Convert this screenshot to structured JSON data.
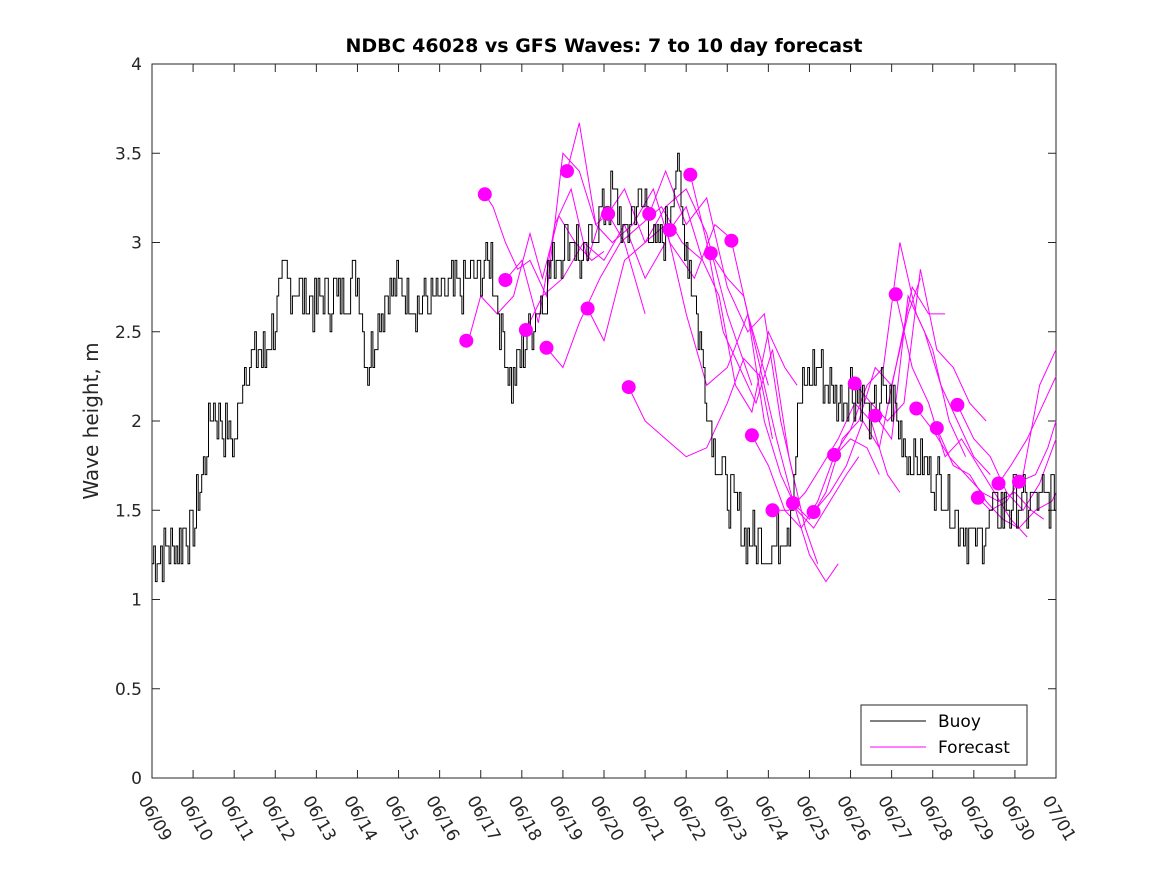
{
  "chart_data": {
    "type": "line",
    "title": "NDBC 46028 vs GFS Waves: 7 to 10 day forecast",
    "xlabel": "",
    "ylabel": "Wave height, m",
    "ylim": [
      0,
      4
    ],
    "yticks": [
      0,
      0.5,
      1,
      1.5,
      2,
      2.5,
      3,
      3.5,
      4
    ],
    "xlim": [
      "06/09",
      "07/01"
    ],
    "xtick_labels": [
      "06/09",
      "06/10",
      "06/11",
      "06/12",
      "06/13",
      "06/14",
      "06/15",
      "06/16",
      "06/17",
      "06/18",
      "06/19",
      "06/20",
      "06/21",
      "06/22",
      "06/23",
      "06/24",
      "06/25",
      "06/26",
      "06/27",
      "06/28",
      "06/29",
      "06/30",
      "07/01"
    ],
    "grid": false,
    "legend": {
      "position": "bottom-right",
      "entries": [
        "Buoy",
        "Forecast"
      ]
    },
    "colors": {
      "buoy": "#000000",
      "forecast": "#ff00ff"
    },
    "buoy": {
      "name": "Buoy",
      "x_day": [
        0,
        0.5,
        1,
        1.25,
        1.5,
        1.75,
        2,
        2.25,
        2.5,
        2.75,
        3,
        3.25,
        3.5,
        4,
        4.5,
        5,
        5.25,
        5.5,
        5.75,
        6,
        6.5,
        7,
        7.5,
        8,
        8.25,
        8.5,
        8.75,
        9,
        9.25,
        9.5,
        9.75,
        10,
        10.25,
        10.5,
        10.75,
        11,
        11.25,
        11.5,
        11.75,
        12,
        12.25,
        12.5,
        12.75,
        13,
        13.25,
        13.5,
        13.75,
        14,
        14.25,
        14.5,
        14.75,
        15,
        15.25,
        15.5,
        15.75,
        16,
        16.25,
        16.5,
        16.75,
        17,
        17.25,
        17.5,
        17.75,
        18,
        18.25,
        18.5,
        18.75,
        19,
        19.25,
        19.5,
        19.75,
        20,
        20.25,
        20.5,
        20.75,
        21,
        21.25,
        21.5,
        21.75,
        22
      ],
      "y": [
        1.25,
        1.3,
        1.4,
        1.75,
        2.1,
        1.95,
        1.9,
        2.3,
        2.4,
        2.35,
        2.6,
        2.8,
        2.75,
        2.65,
        2.7,
        2.8,
        2.3,
        2.55,
        2.75,
        2.75,
        2.65,
        2.7,
        2.75,
        2.85,
        2.9,
        2.5,
        2.2,
        2.4,
        2.55,
        2.7,
        2.9,
        3.0,
        3.05,
        2.85,
        3.1,
        3.2,
        3.25,
        3.0,
        3.2,
        3.25,
        2.9,
        3.1,
        3.4,
        3.0,
        2.6,
        2.1,
        1.8,
        1.6,
        1.45,
        1.35,
        1.3,
        1.3,
        1.35,
        1.45,
        2.1,
        2.25,
        2.3,
        2.2,
        2.1,
        2.2,
        2.15,
        2.0,
        2.15,
        2.1,
        1.9,
        1.8,
        1.75,
        1.7,
        1.6,
        1.5,
        1.4,
        1.3,
        1.4,
        1.5,
        1.5,
        1.55,
        1.5,
        1.55,
        1.55,
        1.6
      ]
    },
    "forecast": {
      "name": "Forecast",
      "points": [
        {
          "x_day": 7.65,
          "y": 2.45
        },
        {
          "x_day": 8.1,
          "y": 3.27
        },
        {
          "x_day": 8.6,
          "y": 2.79
        },
        {
          "x_day": 9.1,
          "y": 2.51
        },
        {
          "x_day": 9.6,
          "y": 2.41
        },
        {
          "x_day": 10.1,
          "y": 3.4
        },
        {
          "x_day": 10.6,
          "y": 2.63
        },
        {
          "x_day": 11.1,
          "y": 3.16
        },
        {
          "x_day": 11.6,
          "y": 2.19
        },
        {
          "x_day": 12.1,
          "y": 3.16
        },
        {
          "x_day": 12.6,
          "y": 3.07
        },
        {
          "x_day": 13.1,
          "y": 3.38
        },
        {
          "x_day": 13.6,
          "y": 2.94
        },
        {
          "x_day": 14.1,
          "y": 3.01
        },
        {
          "x_day": 14.6,
          "y": 1.92
        },
        {
          "x_day": 15.1,
          "y": 1.5
        },
        {
          "x_day": 15.6,
          "y": 1.54
        },
        {
          "x_day": 16.1,
          "y": 1.49
        },
        {
          "x_day": 16.6,
          "y": 1.81
        },
        {
          "x_day": 17.1,
          "y": 2.21
        },
        {
          "x_day": 17.6,
          "y": 2.03
        },
        {
          "x_day": 18.1,
          "y": 2.71
        },
        {
          "x_day": 18.6,
          "y": 2.07
        },
        {
          "x_day": 19.1,
          "y": 1.96
        },
        {
          "x_day": 19.6,
          "y": 2.09
        },
        {
          "x_day": 20.1,
          "y": 1.57
        },
        {
          "x_day": 20.6,
          "y": 1.65
        },
        {
          "x_day": 21.1,
          "y": 1.66
        }
      ],
      "lines": [
        {
          "x_day": [
            8.1,
            8.3,
            8.6,
            8.9,
            9.2,
            9.6,
            10.0,
            10.4,
            10.8,
            11.1
          ],
          "y": [
            3.27,
            3.2,
            3.0,
            2.85,
            2.9,
            2.7,
            3.5,
            3.4,
            3.1,
            3.16
          ]
        },
        {
          "x_day": [
            7.7,
            8.0,
            8.4,
            8.8,
            9.2,
            9.5,
            9.9,
            10.3,
            10.7,
            11.0
          ],
          "y": [
            2.45,
            2.7,
            2.6,
            2.7,
            3.05,
            2.8,
            3.15,
            3.0,
            2.9,
            2.95
          ]
        },
        {
          "x_day": [
            8.6,
            9.0,
            9.4,
            9.8,
            10.2,
            10.6,
            11.0,
            11.5,
            12.0
          ],
          "y": [
            2.79,
            2.9,
            2.55,
            3.1,
            3.3,
            2.9,
            3.2,
            3.0,
            2.6
          ]
        },
        {
          "x_day": [
            9.1,
            9.5,
            10.0,
            10.5,
            11.0,
            11.5,
            12.0,
            12.5
          ],
          "y": [
            2.51,
            2.7,
            2.8,
            3.0,
            2.9,
            3.1,
            2.8,
            3.0
          ]
        },
        {
          "x_day": [
            9.6,
            10.0,
            10.4,
            10.9,
            11.4,
            11.9,
            12.4,
            12.9,
            13.4
          ],
          "y": [
            2.41,
            2.3,
            2.55,
            2.8,
            3.0,
            3.1,
            3.2,
            3.0,
            2.9
          ]
        },
        {
          "x_day": [
            10.1,
            10.4,
            10.8,
            11.2,
            11.7,
            12.2,
            12.6,
            13.2,
            13.7,
            14.2
          ],
          "y": [
            3.4,
            3.67,
            3.1,
            3.0,
            3.1,
            3.3,
            3.0,
            2.8,
            3.1,
            3.0
          ]
        },
        {
          "x_day": [
            10.6,
            11.0,
            11.5,
            12.0,
            12.5,
            13.0,
            13.5,
            14.0,
            14.6
          ],
          "y": [
            2.63,
            2.45,
            2.9,
            3.0,
            3.2,
            3.3,
            3.05,
            2.6,
            2.2
          ]
        },
        {
          "x_day": [
            11.1,
            11.5,
            12.0,
            12.5,
            13.0,
            13.5,
            14.0,
            14.5,
            15.0
          ],
          "y": [
            3.16,
            3.3,
            3.0,
            3.1,
            2.6,
            2.2,
            2.3,
            2.6,
            2.2
          ]
        },
        {
          "x_day": [
            11.6,
            12.0,
            12.5,
            13.0,
            13.5,
            14.0,
            14.4,
            14.8,
            15.1
          ],
          "y": [
            2.19,
            2.0,
            1.9,
            1.8,
            1.85,
            2.1,
            2.35,
            2.25,
            1.9
          ]
        },
        {
          "x_day": [
            12.1,
            12.5,
            13.0,
            13.5,
            14.0,
            14.5,
            14.9,
            15.3,
            15.6
          ],
          "y": [
            3.16,
            3.4,
            3.1,
            3.25,
            2.75,
            2.5,
            2.6,
            2.0,
            1.7
          ]
        },
        {
          "x_day": [
            12.6,
            13.0,
            13.4,
            13.8,
            14.2,
            14.6,
            15.0,
            15.4,
            15.7
          ],
          "y": [
            3.07,
            3.2,
            2.9,
            2.7,
            2.2,
            2.05,
            2.5,
            2.3,
            2.2
          ]
        },
        {
          "x_day": [
            13.1,
            13.5,
            13.9,
            14.3,
            14.7,
            15.1,
            15.5,
            15.9,
            16.2
          ],
          "y": [
            3.38,
            3.0,
            2.5,
            2.3,
            2.1,
            2.4,
            1.8,
            1.4,
            1.2
          ]
        },
        {
          "x_day": [
            13.6,
            14.0,
            14.4,
            14.8,
            15.2,
            15.6,
            16.0,
            16.4,
            16.7
          ],
          "y": [
            2.94,
            2.8,
            2.7,
            2.3,
            1.9,
            1.55,
            1.25,
            1.1,
            1.2
          ]
        },
        {
          "x_day": [
            14.1,
            14.5,
            14.9,
            15.3,
            15.7,
            16.1,
            16.5,
            16.9,
            17.2
          ],
          "y": [
            3.01,
            2.6,
            2.0,
            1.7,
            1.5,
            1.4,
            1.55,
            1.7,
            1.8
          ]
        },
        {
          "x_day": [
            14.6,
            15.0,
            15.4,
            15.8,
            16.2,
            16.6,
            17.0,
            17.4,
            17.7
          ],
          "y": [
            1.92,
            1.75,
            1.5,
            1.4,
            1.55,
            1.8,
            1.9,
            1.85,
            1.7
          ]
        },
        {
          "x_day": [
            15.1,
            15.5,
            15.9,
            16.3,
            16.7,
            17.1,
            17.5,
            17.9,
            18.2
          ],
          "y": [
            1.5,
            1.5,
            1.6,
            1.75,
            1.9,
            2.1,
            2.0,
            1.7,
            1.6
          ]
        },
        {
          "x_day": [
            15.6,
            16.0,
            16.4,
            16.8,
            17.2,
            17.6,
            18.0,
            18.4,
            18.7
          ],
          "y": [
            1.54,
            1.45,
            1.6,
            1.9,
            2.0,
            2.3,
            2.2,
            2.6,
            2.8
          ]
        },
        {
          "x_day": [
            16.1,
            16.5,
            16.9,
            17.3,
            17.7,
            18.1,
            18.5,
            18.9,
            19.3
          ],
          "y": [
            1.49,
            1.6,
            1.75,
            2.0,
            1.85,
            2.3,
            2.75,
            2.6,
            2.6
          ]
        },
        {
          "x_day": [
            16.6,
            17.0,
            17.4,
            17.8,
            18.2,
            18.6,
            19.0,
            19.4,
            19.8
          ],
          "y": [
            1.81,
            1.95,
            2.2,
            2.3,
            3.0,
            2.6,
            2.4,
            2.0,
            1.8
          ]
        },
        {
          "x_day": [
            17.1,
            17.5,
            17.9,
            18.3,
            18.7,
            19.1,
            19.5,
            19.9,
            20.3
          ],
          "y": [
            2.21,
            2.1,
            2.0,
            2.1,
            2.85,
            2.4,
            2.3,
            2.1,
            2.0
          ]
        },
        {
          "x_day": [
            17.6,
            18.0,
            18.4,
            18.8,
            19.2,
            19.6,
            20.0,
            20.4
          ],
          "y": [
            2.03,
            1.9,
            2.7,
            2.5,
            2.2,
            2.0,
            1.8,
            1.7
          ]
        },
        {
          "x_day": [
            18.1,
            18.5,
            18.9,
            19.3,
            19.7,
            20.1,
            20.5,
            20.9,
            21.3
          ],
          "y": [
            2.71,
            2.3,
            2.1,
            1.8,
            1.9,
            1.75,
            1.6,
            1.45,
            1.35
          ]
        },
        {
          "x_day": [
            18.6,
            19.0,
            19.4,
            19.8,
            20.2,
            20.6,
            21.0,
            21.4,
            21.7
          ],
          "y": [
            2.07,
            1.95,
            1.8,
            1.7,
            1.6,
            1.55,
            1.6,
            1.5,
            1.45
          ]
        },
        {
          "x_day": [
            19.1,
            19.5,
            19.9,
            20.3,
            20.7,
            21.1,
            21.5,
            21.9,
            22.0
          ],
          "y": [
            1.96,
            1.75,
            1.7,
            1.55,
            1.45,
            1.4,
            1.5,
            1.55,
            1.6
          ]
        },
        {
          "x_day": [
            19.6,
            20.0,
            20.4,
            20.8,
            21.2,
            21.6,
            22.0
          ],
          "y": [
            2.09,
            1.9,
            1.8,
            1.6,
            1.5,
            1.65,
            1.9
          ]
        },
        {
          "x_day": [
            20.1,
            20.4,
            20.8,
            21.2,
            21.6,
            22.0
          ],
          "y": [
            1.57,
            1.5,
            1.55,
            1.7,
            2.2,
            2.4
          ]
        },
        {
          "x_day": [
            20.6,
            20.9,
            21.3,
            21.7,
            22.0
          ],
          "y": [
            1.65,
            1.75,
            1.9,
            2.1,
            2.25
          ]
        },
        {
          "x_day": [
            21.1,
            21.5,
            21.8,
            22.0
          ],
          "y": [
            1.66,
            1.7,
            1.85,
            2.0
          ]
        }
      ]
    }
  }
}
